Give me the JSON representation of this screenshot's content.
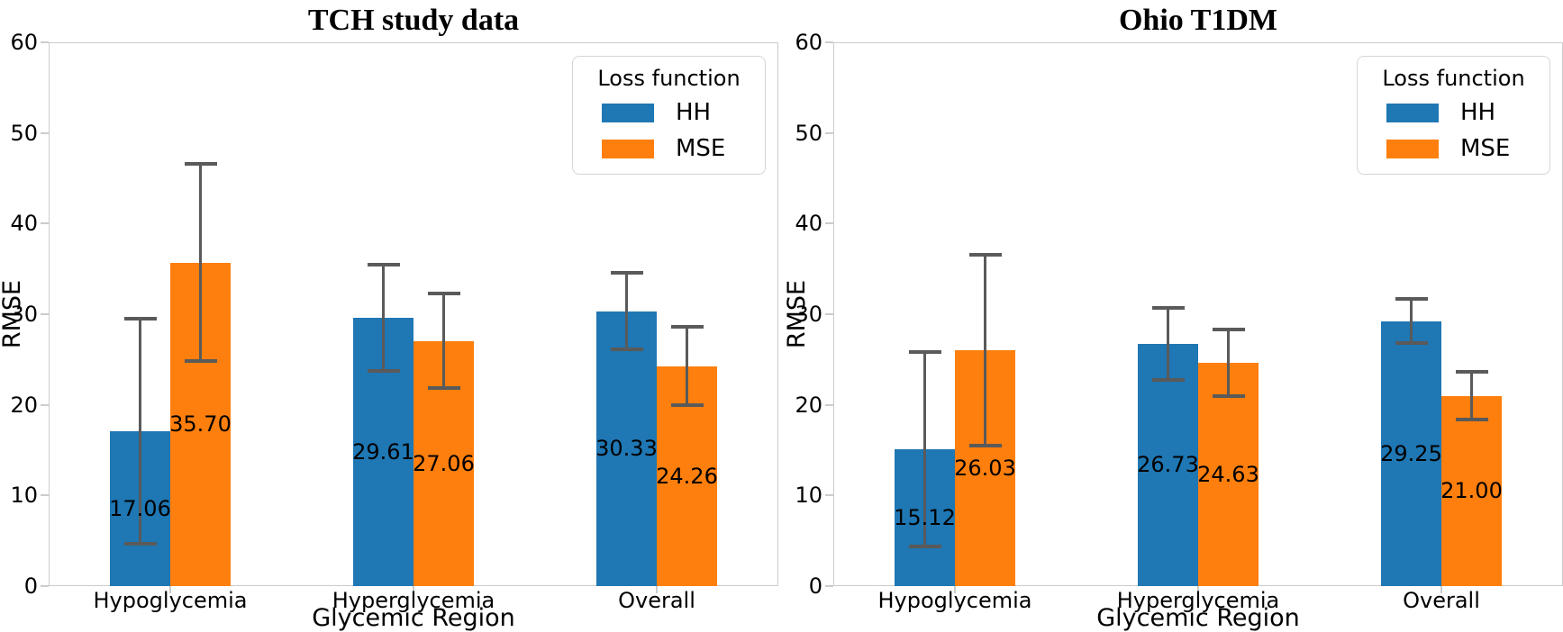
{
  "styles": {
    "hh_color": "#1f77b4",
    "mse_color": "#ff7f0e",
    "error_bar_color": "#5a5a5a",
    "spine_color": "#cccccc",
    "background": "#ffffff",
    "text_color": "#000000"
  },
  "chart_data": [
    {
      "type": "bar",
      "title": "TCH study data",
      "xlabel": "Glycemic Region",
      "ylabel": "RMSE",
      "ylim": [
        0,
        60
      ],
      "ytick_step": 10,
      "yticks": [
        0,
        10,
        20,
        30,
        40,
        50,
        60
      ],
      "grid": false,
      "legend_title": "Loss function",
      "legend_position": "upper right",
      "categories": [
        "Hypoglycemia",
        "Hyperglycemia",
        "Overall"
      ],
      "series": [
        {
          "name": "HH",
          "color": "#1f77b4",
          "values": [
            "17.06",
            "29.61",
            "30.33"
          ],
          "std": [
            12.4,
            5.9,
            4.2
          ]
        },
        {
          "name": "MSE",
          "color": "#ff7f0e",
          "values": [
            "35.70",
            "27.06",
            "24.26"
          ],
          "std": [
            10.9,
            5.2,
            4.3
          ]
        }
      ]
    },
    {
      "type": "bar",
      "title": "Ohio T1DM",
      "xlabel": "Glycemic Region",
      "ylabel": "RMSE",
      "ylim": [
        0,
        60
      ],
      "ytick_step": 10,
      "yticks": [
        0,
        10,
        20,
        30,
        40,
        50,
        60
      ],
      "grid": false,
      "legend_title": "Loss function",
      "legend_position": "upper right",
      "categories": [
        "Hypoglycemia",
        "Hyperglycemia",
        "Overall"
      ],
      "series": [
        {
          "name": "HH",
          "color": "#1f77b4",
          "values": [
            "15.12",
            "26.73",
            "29.25"
          ],
          "std": [
            10.7,
            4.0,
            2.4
          ]
        },
        {
          "name": "MSE",
          "color": "#ff7f0e",
          "values": [
            "26.03",
            "24.63",
            "21.00"
          ],
          "std": [
            10.5,
            3.7,
            2.6
          ]
        }
      ]
    }
  ]
}
